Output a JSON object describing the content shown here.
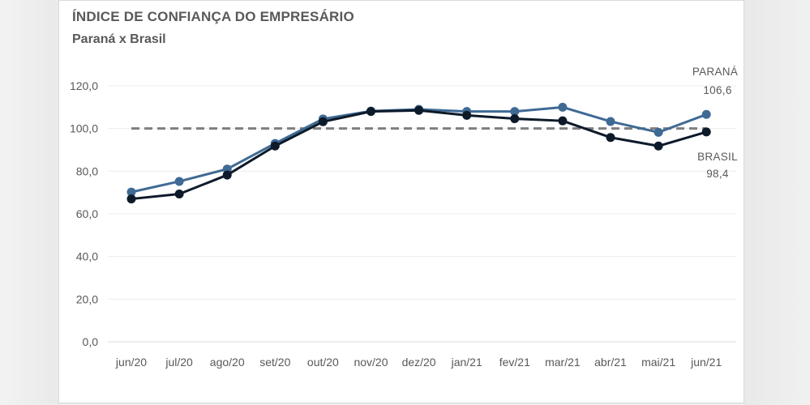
{
  "chart_data": {
    "type": "line",
    "title": "ÍNDICE DE CONFIANÇA DO EMPRESÁRIO",
    "subtitle": "Paraná x Brasil",
    "categories": [
      "jun/20",
      "jul/20",
      "ago/20",
      "set/20",
      "out/20",
      "nov/20",
      "dez/20",
      "jan/21",
      "fev/21",
      "mar/21",
      "abr/21",
      "mai/21",
      "jun/21"
    ],
    "ylim": [
      0,
      120
    ],
    "yticks": [
      "0,0",
      "20,0",
      "40,0",
      "60,0",
      "80,0",
      "100,0",
      "120,0"
    ],
    "reference_line": 100,
    "grid": true,
    "series": [
      {
        "name": "PARANÁ",
        "color": "#3f6a94",
        "values": [
          70.2,
          75.2,
          81.0,
          93.0,
          104.5,
          108.2,
          109.0,
          108.0,
          108.0,
          110.0,
          103.3,
          98.2,
          106.6
        ],
        "end_label": "PARANÁ",
        "end_value": "106,6"
      },
      {
        "name": "BRASIL",
        "color": "#0d1a2a",
        "values": [
          67.0,
          69.3,
          78.2,
          91.8,
          103.2,
          108.0,
          108.5,
          106.2,
          104.6,
          103.6,
          95.8,
          91.8,
          98.4
        ],
        "end_label": "BRASIL",
        "end_value": "98,4"
      }
    ]
  }
}
